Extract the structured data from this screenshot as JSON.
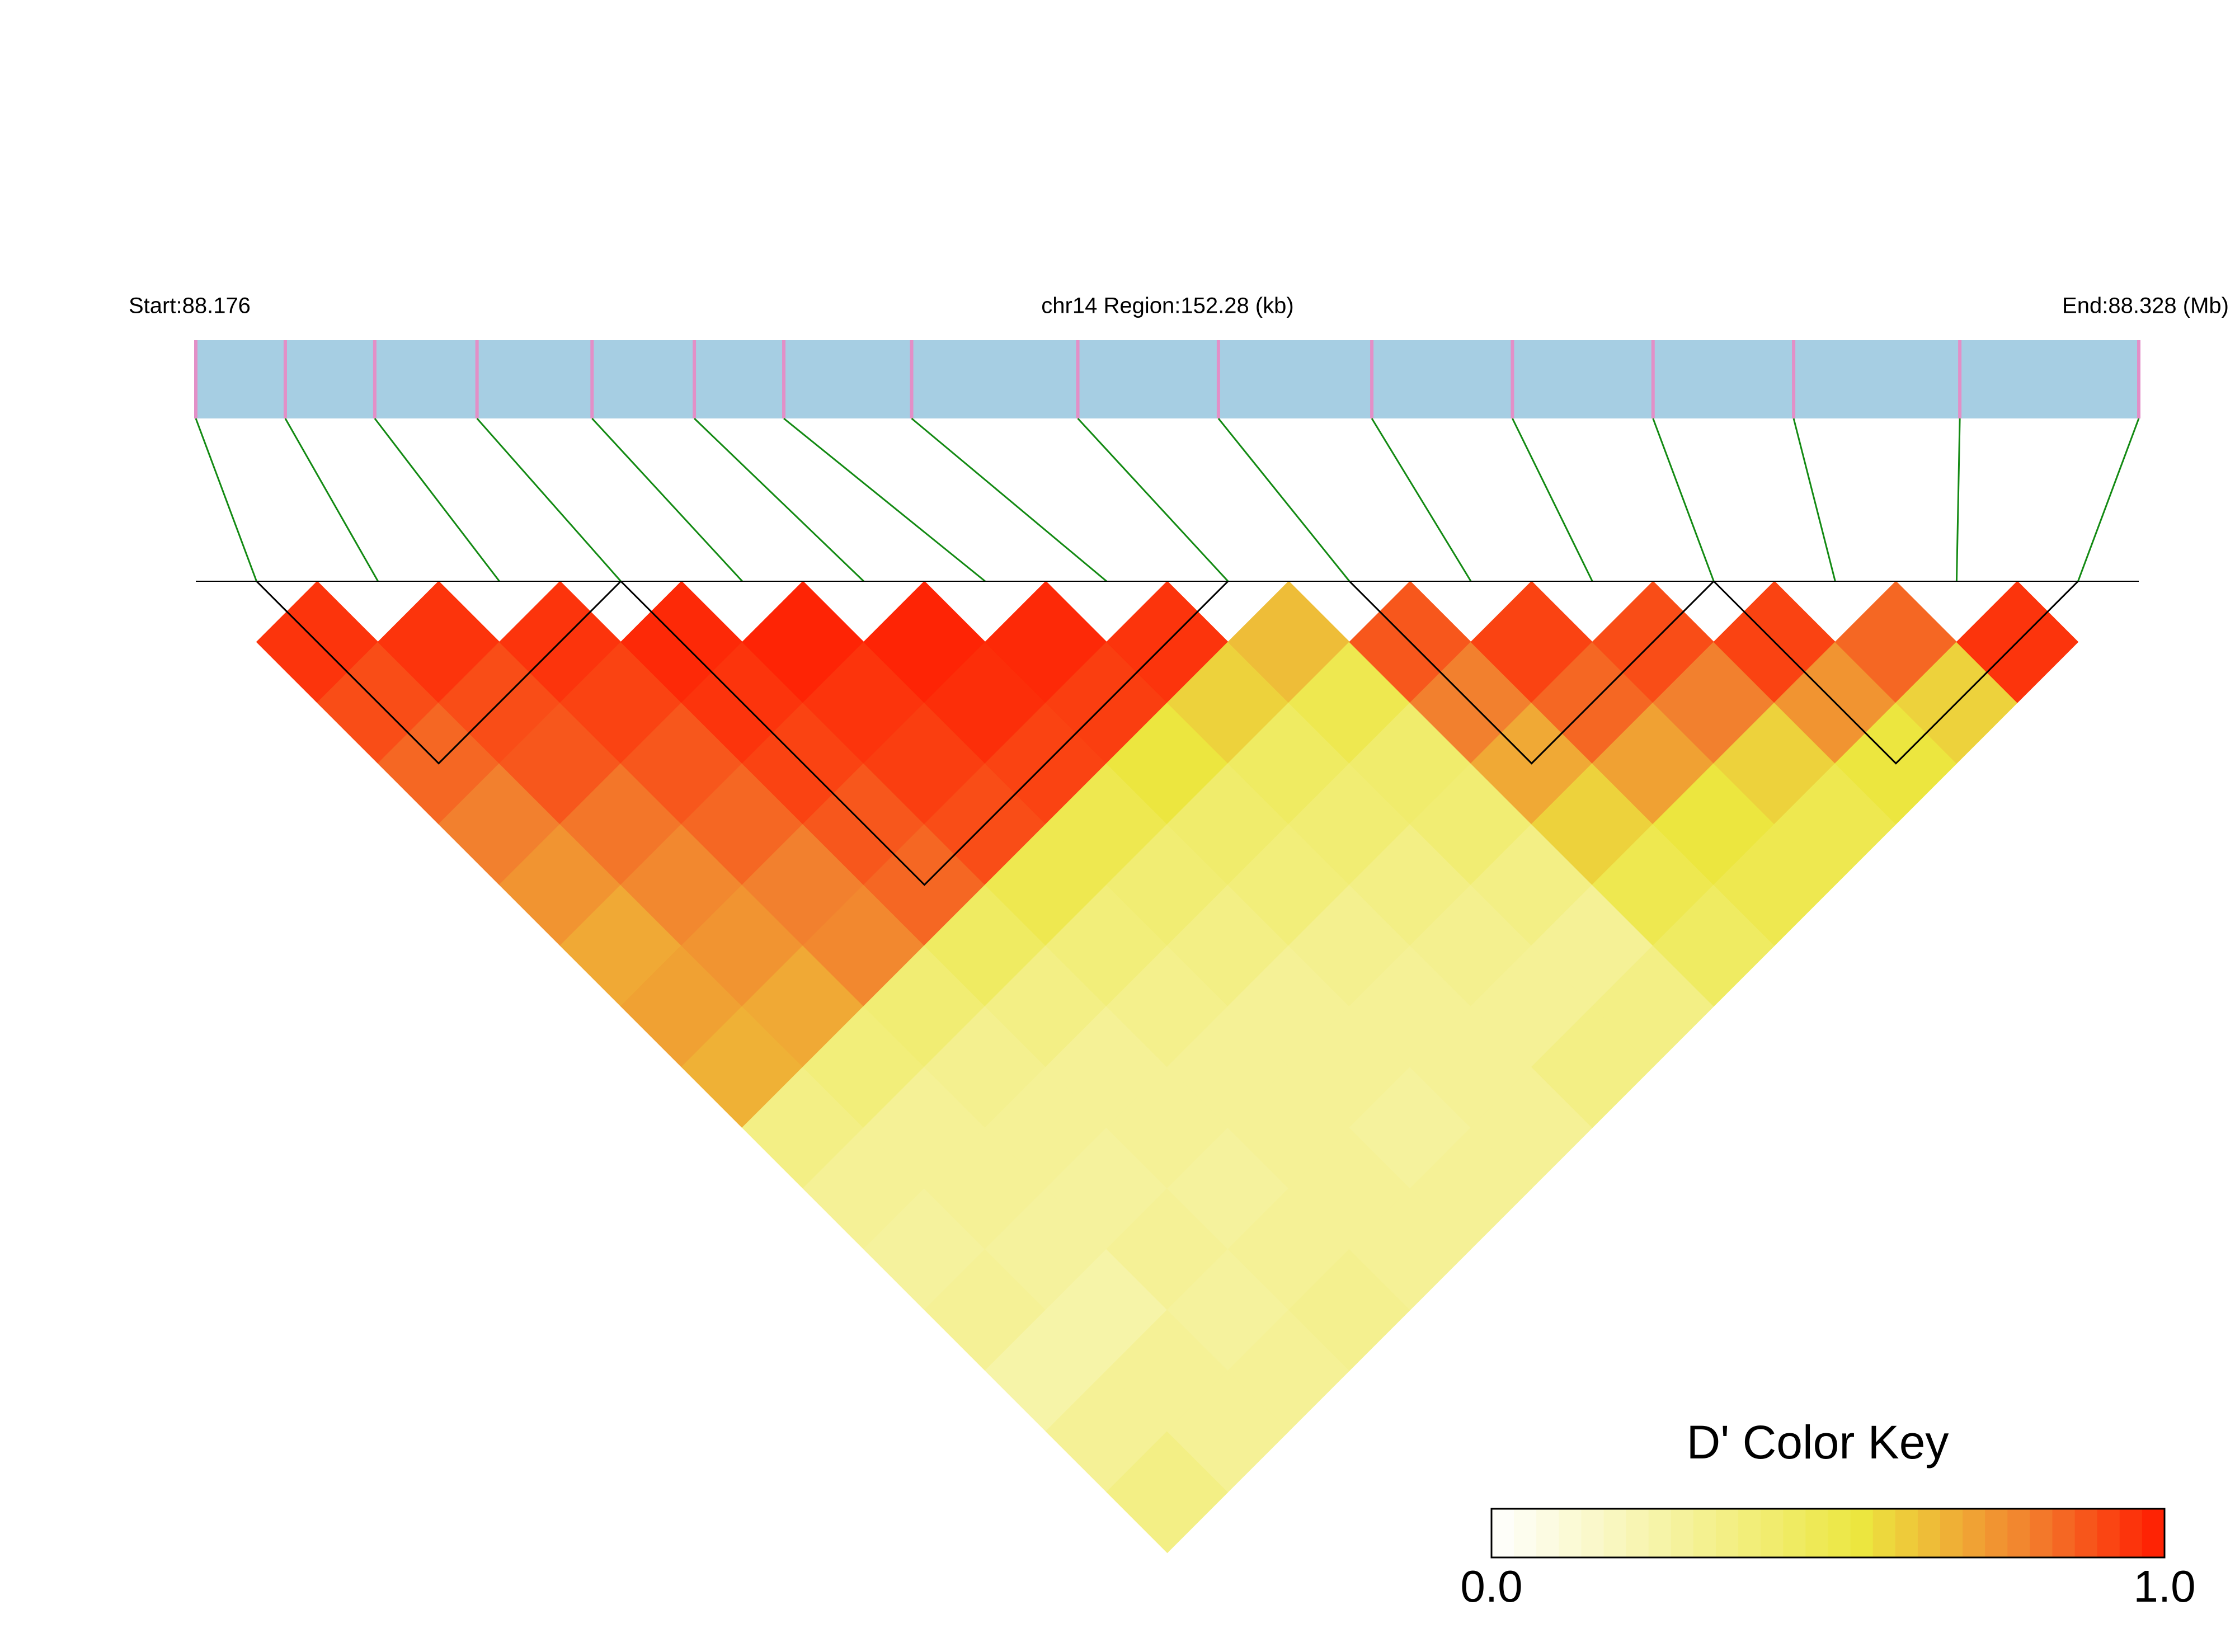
{
  "chart_data": {
    "type": "ld-heatmap",
    "start_label": "Start:88.176",
    "region_label": "chr14 Region:152.28 (kb)",
    "end_label": "End:88.328 (Mb)",
    "xlim": [
      88.176,
      88.328
    ],
    "snp_positions": [
      88.176,
      88.183,
      88.19,
      88.198,
      88.207,
      88.215,
      88.222,
      88.232,
      88.245,
      88.256,
      88.268,
      88.279,
      88.29,
      88.301,
      88.314,
      88.328
    ],
    "matrix": [
      [
        0.95,
        0.9,
        0.85,
        0.8,
        0.75,
        0.7,
        0.72,
        0.68,
        0.35,
        0.3,
        0.28,
        0.3,
        0.25,
        0.3,
        0.35
      ],
      [
        0.95,
        0.9,
        0.88,
        0.82,
        0.78,
        0.75,
        0.7,
        0.38,
        0.3,
        0.3,
        0.28,
        0.25,
        0.3,
        0.3
      ],
      [
        0.95,
        0.92,
        0.88,
        0.85,
        0.8,
        0.78,
        0.4,
        0.32,
        0.3,
        0.28,
        0.3,
        0.28,
        0.3
      ],
      [
        0.97,
        0.95,
        0.92,
        0.88,
        0.85,
        0.45,
        0.35,
        0.3,
        0.3,
        0.28,
        0.3,
        0.32
      ],
      [
        0.98,
        0.95,
        0.93,
        0.9,
        0.5,
        0.38,
        0.33,
        0.3,
        0.3,
        0.3,
        0.3
      ],
      [
        0.98,
        0.96,
        0.92,
        0.5,
        0.4,
        0.35,
        0.3,
        0.3,
        0.28,
        0.3
      ],
      [
        0.97,
        0.93,
        0.55,
        0.42,
        0.38,
        0.32,
        0.3,
        0.3,
        0.3
      ],
      [
        0.95,
        0.6,
        0.45,
        0.4,
        0.35,
        0.32,
        0.3,
        0.35
      ],
      [
        0.65,
        0.5,
        0.42,
        0.4,
        0.35,
        0.3,
        0.35
      ],
      [
        0.88,
        0.8,
        0.7,
        0.6,
        0.5,
        0.45
      ],
      [
        0.92,
        0.85,
        0.72,
        0.55,
        0.5
      ],
      [
        0.9,
        0.8,
        0.6,
        0.5
      ],
      [
        0.92,
        0.75,
        0.55
      ],
      [
        0.85,
        0.6
      ],
      [
        0.95
      ]
    ],
    "blocks": [
      [
        0,
        3
      ],
      [
        3,
        8
      ],
      [
        9,
        12
      ],
      [
        12,
        15
      ]
    ],
    "key_title": "D' Color Key",
    "clim": [
      0,
      1
    ],
    "key_ticks": [
      {
        "value": 0,
        "label": "0.0"
      },
      {
        "value": 1,
        "label": "1.0"
      }
    ],
    "colors": [
      {
        "value": 0,
        "color": "#ffffff"
      },
      {
        "value": 0.55,
        "color": "#ece63f"
      },
      {
        "value": 0.8,
        "color": "#f2802e"
      },
      {
        "value": 1,
        "color": "#ff1a00"
      }
    ],
    "track_color": "#a6cee3",
    "snp_color": "#e38fc7",
    "link_color": "#138a13"
  }
}
